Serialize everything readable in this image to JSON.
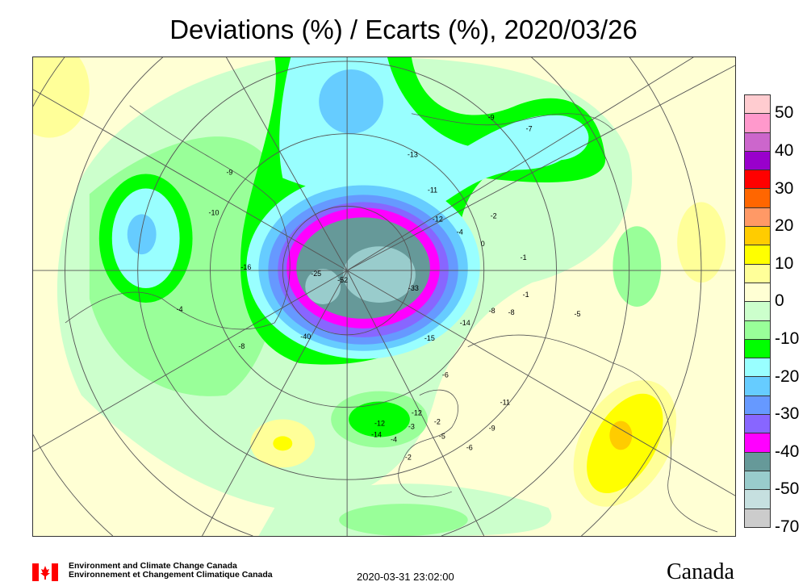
{
  "title": "Deviations (%) / Ecarts (%), 2020/03/26",
  "legend": {
    "colors": [
      "#ffccd0",
      "#ff99cc",
      "#cc66cc",
      "#9900cc",
      "#ff0000",
      "#ff6600",
      "#ff9966",
      "#ffcc00",
      "#ffff00",
      "#ffff99",
      "#ffffd4",
      "#ccffcc",
      "#99ff99",
      "#00ff00",
      "#99ffff",
      "#66ccff",
      "#6699ff",
      "#8866ff",
      "#ff00ff",
      "#669999",
      "#99cccc",
      "#c6e0e0",
      "#cccccc"
    ],
    "labels": [
      "50",
      "40",
      "30",
      "20",
      "10",
      "0",
      "-10",
      "-20",
      "-30",
      "-40",
      "-50",
      "-70"
    ]
  },
  "contour_labels": [
    "-16",
    "-10",
    "-9",
    "-8",
    "-4",
    "-13",
    "-11",
    "-9",
    "-7",
    "-12",
    "-2",
    "-4",
    "0",
    "-1",
    "-1",
    "-5",
    "-8",
    "-14",
    "-15",
    "-12",
    "-12",
    "-14",
    "-4",
    "-3",
    "-2",
    "-5",
    "-6",
    "-9",
    "-11",
    "-6",
    "-25",
    "-33",
    "-52",
    "-40",
    "-2",
    "-8"
  ],
  "footer": {
    "org_en": "Environment and Climate Change Canada",
    "org_fr": "Environnement et Changement Climatique Canada",
    "timestamp": "2020-03-31 23:02:00",
    "wordmark": "Canada"
  }
}
